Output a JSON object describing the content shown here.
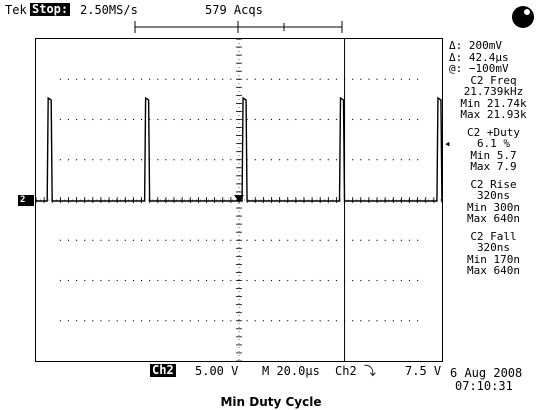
{
  "header": {
    "brand": "Tek",
    "run_state": "Stop:",
    "sample_rate": "2.50MS/s",
    "acquisitions": "579 Acqs"
  },
  "screen": {
    "channel_marker": "2",
    "trace_color": "#000000",
    "pulse_times_divisions": [
      0.3,
      2.7,
      5.1,
      7.5,
      9.9
    ],
    "cursor_positions_divisions": [
      7.6
    ]
  },
  "measurements": {
    "delta_v": "Δ: 200mV",
    "delta_t": "Δ: 42.4μs",
    "at_value": "@: −100mV",
    "freq_title": "C2 Freq",
    "freq_value": "21.739kHz",
    "freq_min": "Min 21.74k",
    "freq_max": "Max 21.93k",
    "duty_title": "C2 +Duty",
    "duty_value": "6.1 %",
    "duty_min": "Min 5.7",
    "duty_max": "Max 7.9",
    "rise_title": "C2 Rise",
    "rise_value": "320ns",
    "rise_min": "Min 300n",
    "rise_max": "Max 640n",
    "fall_title": "C2 Fall",
    "fall_value": "320ns",
    "fall_min": "Min 170n",
    "fall_max": "Max 640n"
  },
  "footer": {
    "channel_box": "Ch2",
    "volts_div": "5.00 V",
    "time_div": "M 20.0μs",
    "trigger": "Ch2 ⤵",
    "trigger_level": "7.5 V",
    "date": "6 Aug 2008",
    "time": "07:10:31"
  },
  "caption": "Min Duty Cycle"
}
